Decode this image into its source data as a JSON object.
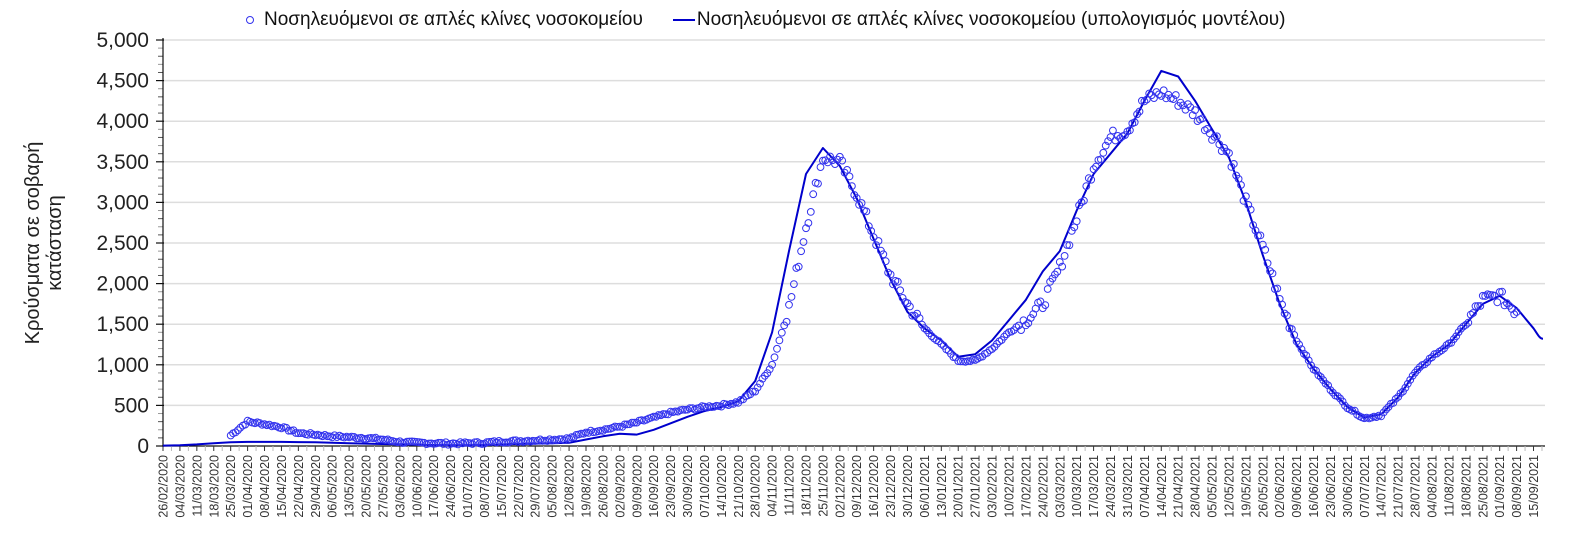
{
  "chart_data": {
    "type": "line",
    "title": "",
    "legend": {
      "position": "top",
      "entries": [
        {
          "name": "Νοσηλευόμενοι σε απλές κλίνες νοσοκομείου",
          "style": "open-circle-markers",
          "color": "#3333ee"
        },
        {
          "name": "Νοσηλευόμενοι σε απλές κλίνες νοσοκομείου (υπολογισμός μοντέλου)",
          "style": "solid-line",
          "color": "#0000cc"
        }
      ]
    },
    "xlabel": "",
    "ylabel_lines": [
      "Κρούσματα σε σοβαρή",
      "κατάσταση"
    ],
    "ylim": [
      0,
      5000
    ],
    "yticks": [
      0,
      500,
      1000,
      1500,
      2000,
      2500,
      3000,
      3500,
      4000,
      4500,
      5000
    ],
    "ytick_labels": [
      "0",
      "500",
      "1,000",
      "1,500",
      "2,000",
      "2,500",
      "3,000",
      "3,500",
      "4,000",
      "4,500",
      "5,000"
    ],
    "grid": {
      "horizontal": true,
      "vertical": false
    },
    "x": [
      "26/02/2020",
      "04/03/2020",
      "11/03/2020",
      "18/03/2020",
      "25/03/2020",
      "01/04/2020",
      "08/04/2020",
      "15/04/2020",
      "22/04/2020",
      "29/04/2020",
      "06/05/2020",
      "13/05/2020",
      "20/05/2020",
      "27/05/2020",
      "03/06/2020",
      "10/06/2020",
      "17/06/2020",
      "24/06/2020",
      "01/07/2020",
      "08/07/2020",
      "15/07/2020",
      "22/07/2020",
      "29/07/2020",
      "05/08/2020",
      "12/08/2020",
      "19/08/2020",
      "26/08/2020",
      "02/09/2020",
      "09/09/2020",
      "16/09/2020",
      "23/09/2020",
      "30/09/2020",
      "07/10/2020",
      "14/10/2020",
      "21/10/2020",
      "28/10/2020",
      "04/11/2020",
      "11/11/2020",
      "18/11/2020",
      "25/11/2020",
      "02/12/2020",
      "09/12/2020",
      "16/12/2020",
      "23/12/2020",
      "30/12/2020",
      "06/01/2021",
      "13/01/2021",
      "20/01/2021",
      "27/01/2021",
      "03/02/2021",
      "10/02/2021",
      "17/02/2021",
      "24/02/2021",
      "03/03/2021",
      "10/03/2021",
      "17/03/2021",
      "24/03/2021",
      "31/03/2021",
      "07/04/2021",
      "14/04/2021",
      "21/04/2021",
      "28/04/2021",
      "05/05/2021",
      "12/05/2021",
      "19/05/2021",
      "26/05/2021",
      "02/06/2021",
      "09/06/2021",
      "16/06/2021",
      "23/06/2021",
      "30/06/2021",
      "07/07/2021",
      "14/07/2021",
      "21/07/2021",
      "28/07/2021",
      "04/08/2021",
      "11/08/2021",
      "18/08/2021",
      "25/08/2021",
      "01/09/2021",
      "08/09/2021",
      "15/09/2021"
    ],
    "series": [
      {
        "name": "Νοσηλευόμενοι σε απλές κλίνες νοσοκομείου",
        "values": [
          null,
          null,
          null,
          null,
          130,
          300,
          270,
          230,
          160,
          140,
          120,
          110,
          100,
          80,
          50,
          40,
          35,
          30,
          35,
          40,
          55,
          60,
          70,
          80,
          90,
          170,
          200,
          240,
          290,
          350,
          410,
          450,
          480,
          500,
          540,
          680,
          1000,
          1700,
          2700,
          3550,
          3500,
          3100,
          2600,
          2100,
          1750,
          1450,
          1250,
          1050,
          1050,
          1200,
          1400,
          1550,
          1750,
          2200,
          2800,
          3450,
          3800,
          3900,
          4250,
          4350,
          4250,
          4100,
          3850,
          3600,
          3000,
          2450,
          1800,
          1300,
          950,
          700,
          480,
          340,
          380,
          600,
          900,
          1100,
          1250,
          1500,
          1800,
          1850,
          1650,
          null
        ]
      },
      {
        "name": "Νοσηλευόμενοι σε απλές κλίνες νοσοκομείου (υπολογισμός μοντέλου)",
        "values": [
          5,
          10,
          20,
          35,
          45,
          50,
          50,
          50,
          48,
          45,
          40,
          35,
          30,
          25,
          20,
          15,
          12,
          10,
          10,
          12,
          18,
          25,
          30,
          35,
          40,
          80,
          120,
          150,
          140,
          200,
          280,
          360,
          430,
          480,
          550,
          800,
          1400,
          2400,
          3350,
          3670,
          3450,
          3050,
          2550,
          2050,
          1650,
          1450,
          1300,
          1100,
          1130,
          1300,
          1550,
          1800,
          2150,
          2400,
          2900,
          3350,
          3600,
          3850,
          4250,
          4620,
          4550,
          4250,
          3900,
          3550,
          3000,
          2350,
          1750,
          1250,
          950,
          700,
          480,
          350,
          390,
          600,
          900,
          1100,
          1250,
          1500,
          1750,
          1850,
          1700,
          1450
        ]
      }
    ],
    "model_tail": {
      "x_end_label": "~29/09/2021",
      "value_end": 1320
    }
  },
  "legend_text": {
    "observed": "Νοσηλευόμενοι σε απλές κλίνες νοσοκομείου",
    "model": "Νοσηλευόμενοι σε απλές κλίνες νοσοκομείου (υπολογισμός μοντέλου)"
  },
  "axis": {
    "ylabel_line1": "Κρούσματα σε σοβαρή",
    "ylabel_line2": "κατάσταση"
  },
  "colors": {
    "observed": "#3333ee",
    "model": "#0000cc",
    "grid": "#dddddd",
    "axis": "#111111"
  }
}
